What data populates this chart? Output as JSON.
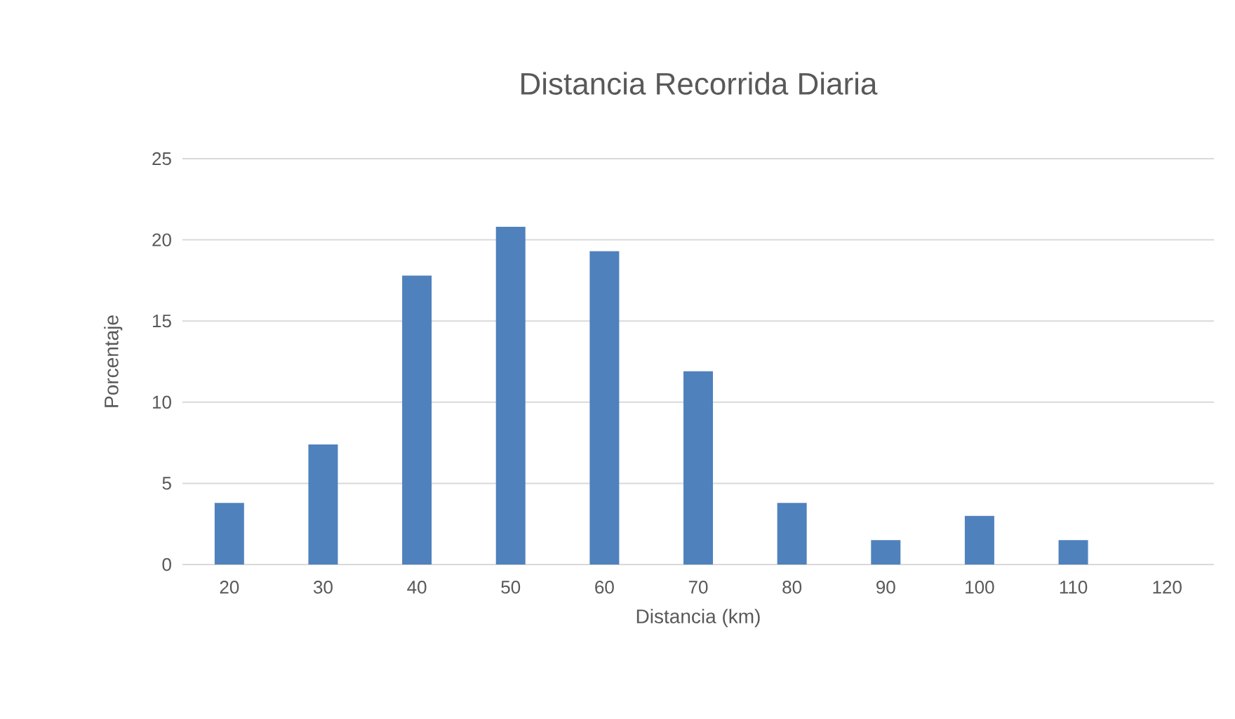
{
  "chart_data": {
    "type": "bar",
    "title": "Distancia Recorrida Diaria",
    "xlabel": "Distancia (km)",
    "ylabel": "Porcentaje",
    "categories": [
      "20",
      "30",
      "40",
      "50",
      "60",
      "70",
      "80",
      "90",
      "100",
      "110",
      "120"
    ],
    "values": [
      3.8,
      7.4,
      17.8,
      20.8,
      19.3,
      11.9,
      3.8,
      1.5,
      3.0,
      1.5,
      0
    ],
    "color": "#4f81bd",
    "ylim": [
      0,
      25
    ],
    "yticks": [
      0,
      5,
      10,
      15,
      20,
      25
    ],
    "grid": "y"
  }
}
